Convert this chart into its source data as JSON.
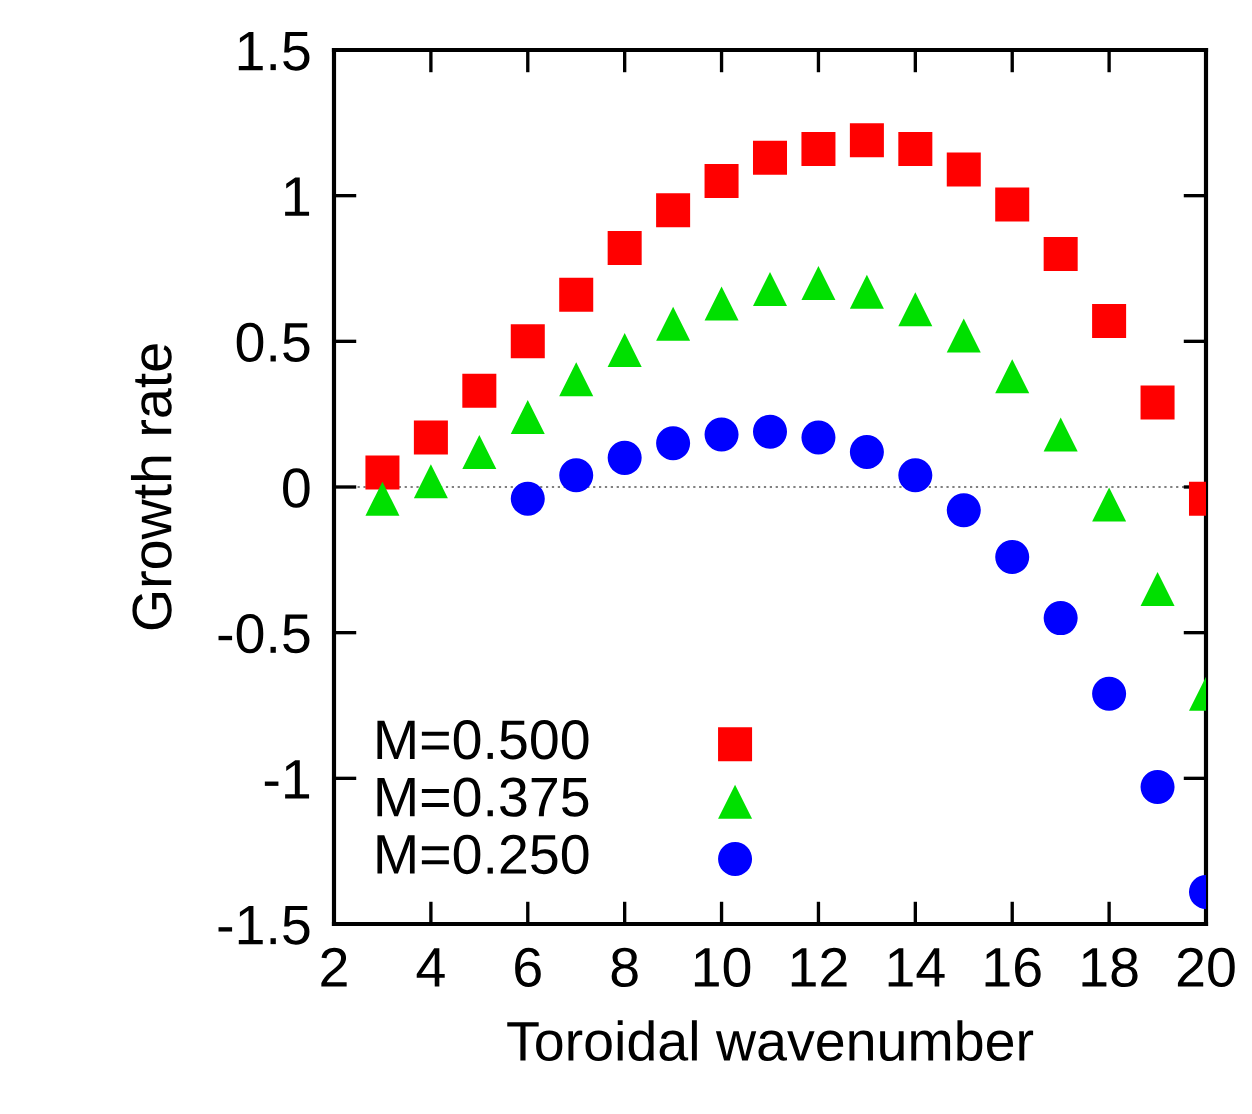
{
  "chart_data": {
    "type": "scatter",
    "xlabel": "Toroidal wavenumber",
    "ylabel": "Growth rate",
    "xlim": [
      2,
      20
    ],
    "xticks": [
      2,
      4,
      6,
      8,
      10,
      12,
      14,
      16,
      18,
      20
    ],
    "ylim": [
      -1.5,
      1.5
    ],
    "yticks": [
      -1.5,
      -1,
      -0.5,
      0,
      0.5,
      1,
      1.5
    ],
    "grid": false,
    "legend": "bottom left",
    "ref_lines": [
      {
        "axis": "y",
        "value": 0,
        "color": "#808080",
        "line_style": "dotted"
      }
    ],
    "series": [
      {
        "name": "M=0.500",
        "color": "#ff0000",
        "marker": "square",
        "x": [
          3,
          4,
          5,
          6,
          7,
          8,
          9,
          10,
          11,
          12,
          13,
          14,
          15,
          16,
          17,
          18,
          19,
          20
        ],
        "values": [
          0.05,
          0.17,
          0.33,
          0.5,
          0.66,
          0.82,
          0.95,
          1.05,
          1.13,
          1.16,
          1.19,
          1.16,
          1.09,
          0.97,
          0.8,
          0.57,
          0.29,
          -0.04
        ]
      },
      {
        "name": "M=0.375",
        "color": "#00e000",
        "marker": "triangle",
        "x": [
          3,
          4,
          5,
          6,
          7,
          8,
          9,
          10,
          11,
          12,
          13,
          14,
          15,
          16,
          17,
          18,
          19,
          20
        ],
        "values": [
          -0.04,
          0.02,
          0.12,
          0.24,
          0.37,
          0.47,
          0.56,
          0.63,
          0.68,
          0.7,
          0.67,
          0.61,
          0.52,
          0.38,
          0.18,
          -0.06,
          -0.35,
          -0.71
        ]
      },
      {
        "name": "M=0.250",
        "color": "#0000ff",
        "marker": "circle",
        "x": [
          6,
          7,
          8,
          9,
          10,
          11,
          12,
          13,
          14,
          15,
          16,
          17,
          18,
          19,
          20
        ],
        "values": [
          -0.04,
          0.04,
          0.1,
          0.15,
          0.18,
          0.19,
          0.17,
          0.12,
          0.04,
          -0.08,
          -0.24,
          -0.45,
          -0.71,
          -1.03,
          -1.39
        ]
      }
    ]
  }
}
